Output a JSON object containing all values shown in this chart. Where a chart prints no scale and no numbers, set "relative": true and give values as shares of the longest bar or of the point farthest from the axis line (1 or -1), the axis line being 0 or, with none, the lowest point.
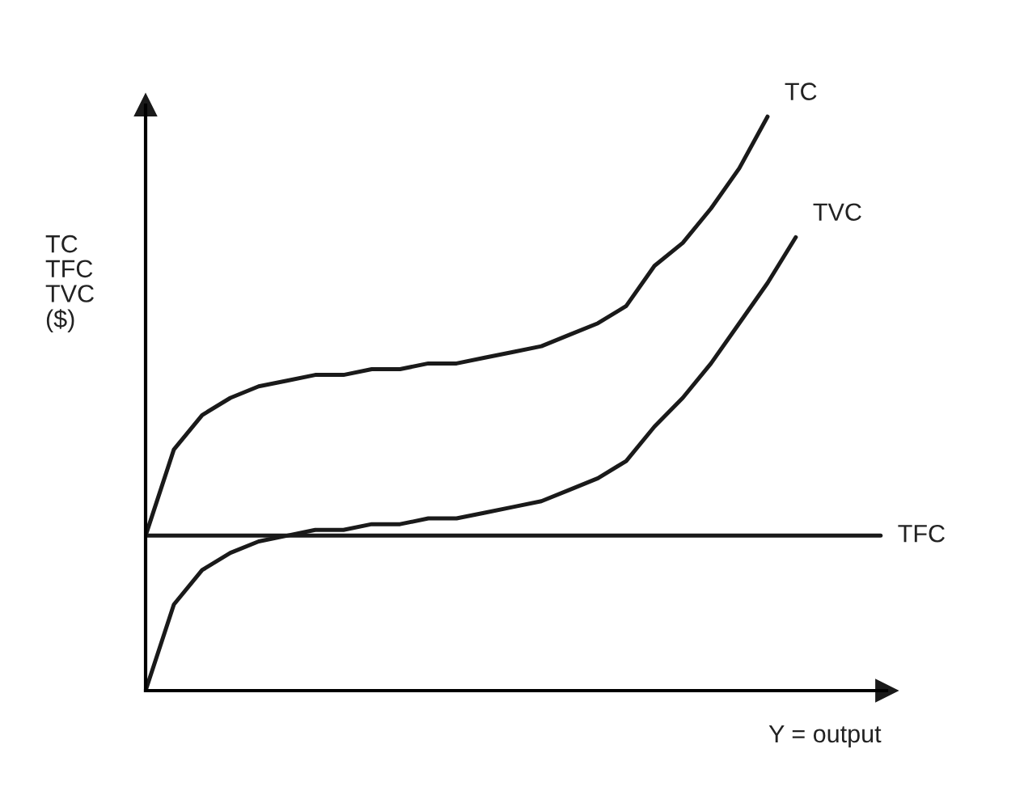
{
  "chart_data": {
    "type": "line",
    "relative": true,
    "ylabel": "TC\nTFC\nTVC\n($)",
    "xlabel": "Y = output",
    "categories": [
      null,
      null,
      null,
      null,
      null,
      null,
      null,
      null,
      null,
      null,
      null,
      null,
      null,
      null,
      null,
      null,
      null,
      null,
      null,
      null,
      null,
      null,
      null,
      null,
      null,
      null,
      null
    ],
    "series": [
      {
        "name": "TC",
        "color": "#1a1a1a",
        "values": [
          0.27,
          0.42,
          0.48,
          0.51,
          0.53,
          0.54,
          0.55,
          0.55,
          0.56,
          0.56,
          0.57,
          0.57,
          0.58,
          0.59,
          0.6,
          0.62,
          0.64,
          0.67,
          0.74,
          0.78,
          0.84,
          0.91,
          1.0,
          null,
          null,
          null,
          null
        ]
      },
      {
        "name": "TVC",
        "color": "#1a1a1a",
        "values": [
          0,
          0.15,
          0.21,
          0.24,
          0.26,
          0.27,
          0.28,
          0.28,
          0.29,
          0.29,
          0.3,
          0.3,
          0.31,
          0.32,
          0.33,
          0.35,
          0.37,
          0.4,
          0.46,
          0.51,
          0.57,
          0.64,
          0.71,
          0.79,
          null,
          null,
          null
        ]
      },
      {
        "name": "TFC",
        "color": "#1a1a1a",
        "values": [
          0.27,
          0.27,
          0.27,
          0.27,
          0.27,
          0.27,
          0.27,
          0.27,
          0.27,
          0.27,
          0.27,
          0.27,
          0.27,
          0.27,
          0.27,
          0.27,
          0.27,
          0.27,
          0.27,
          0.27,
          0.27,
          0.27,
          0.27,
          0.27,
          0.27,
          0.27,
          0.27
        ]
      }
    ],
    "grid": false,
    "legend": false,
    "marker": "none",
    "line_style": "solid"
  }
}
